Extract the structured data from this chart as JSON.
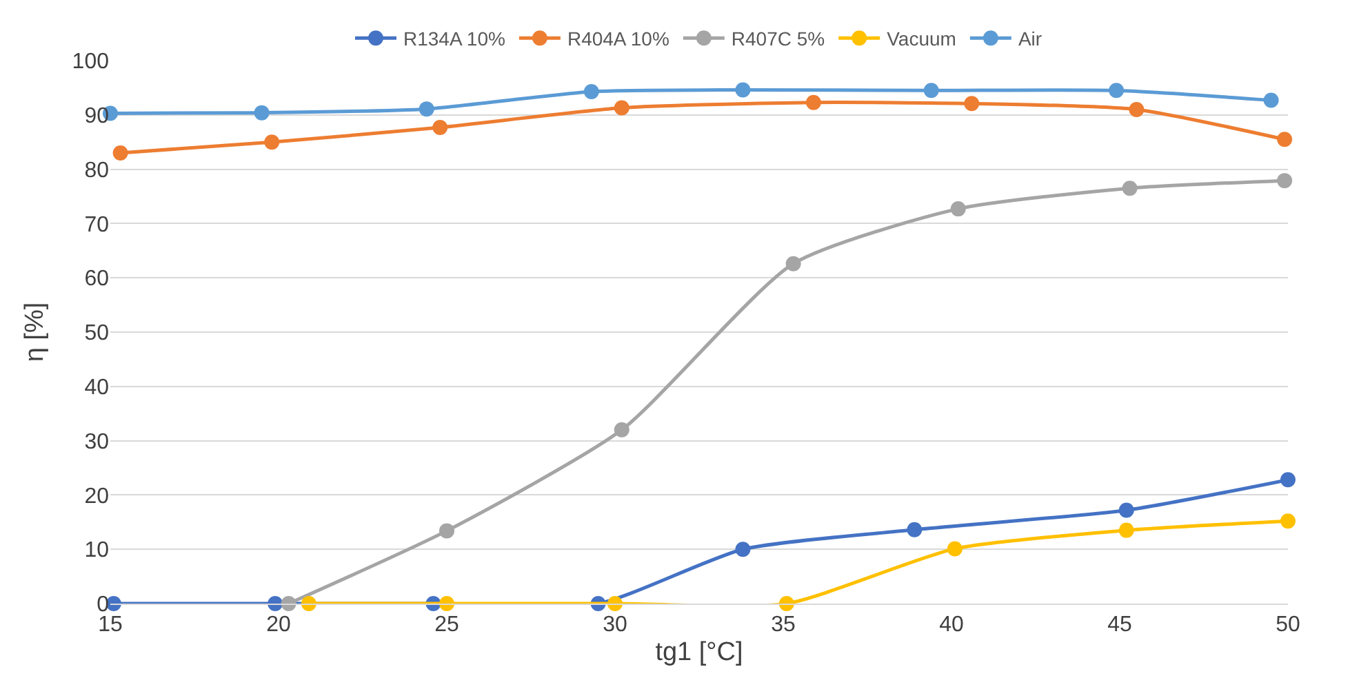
{
  "chart_data": {
    "type": "line",
    "xlabel": "tg1 [°C]",
    "ylabel": "η [%]",
    "xlim": [
      15,
      50
    ],
    "xticks": [
      15,
      20,
      25,
      30,
      35,
      40,
      45,
      50
    ],
    "ylim": [
      0,
      100
    ],
    "yticks": [
      0,
      10,
      20,
      30,
      40,
      50,
      60,
      70,
      80,
      90,
      100
    ],
    "grid": "y",
    "legend": "top",
    "marker": "circle",
    "line_style": "solid",
    "series": [
      {
        "name": "R134A 10%",
        "color": "#4472c4",
        "x": [
          15.1,
          19.9,
          24.6,
          29.5,
          33.8,
          38.9,
          45.2,
          50
        ],
        "values": [
          0,
          0,
          0,
          0,
          10,
          13.6,
          17.2,
          22.8
        ]
      },
      {
        "name": "R404A 10%",
        "color": "#ed7d31",
        "x": [
          15.3,
          19.8,
          24.8,
          30.2,
          35.9,
          40.6,
          45.5,
          49.9
        ],
        "values": [
          83,
          85,
          87.7,
          91.3,
          92.3,
          92.1,
          91,
          85.5
        ]
      },
      {
        "name": "R407C 5%",
        "color": "#a5a5a5",
        "x": [
          20.3,
          25,
          30.2,
          35.3,
          40.2,
          45.3,
          49.9
        ],
        "values": [
          0,
          13.4,
          32,
          62.6,
          72.7,
          76.5,
          77.9
        ]
      },
      {
        "name": "Vacuum",
        "color": "#ffc000",
        "x": [
          20.9,
          25,
          30,
          35.1,
          40.1,
          45.2,
          50
        ],
        "values": [
          0,
          0,
          0,
          0,
          10.1,
          13.5,
          15.2
        ]
      },
      {
        "name": "Air",
        "color": "#5b9bd5",
        "x": [
          15,
          19.5,
          24.4,
          29.3,
          33.8,
          39.4,
          44.9,
          49.5
        ],
        "values": [
          90.3,
          90.4,
          91.1,
          94.3,
          94.6,
          94.5,
          94.5,
          92.7
        ]
      }
    ]
  }
}
